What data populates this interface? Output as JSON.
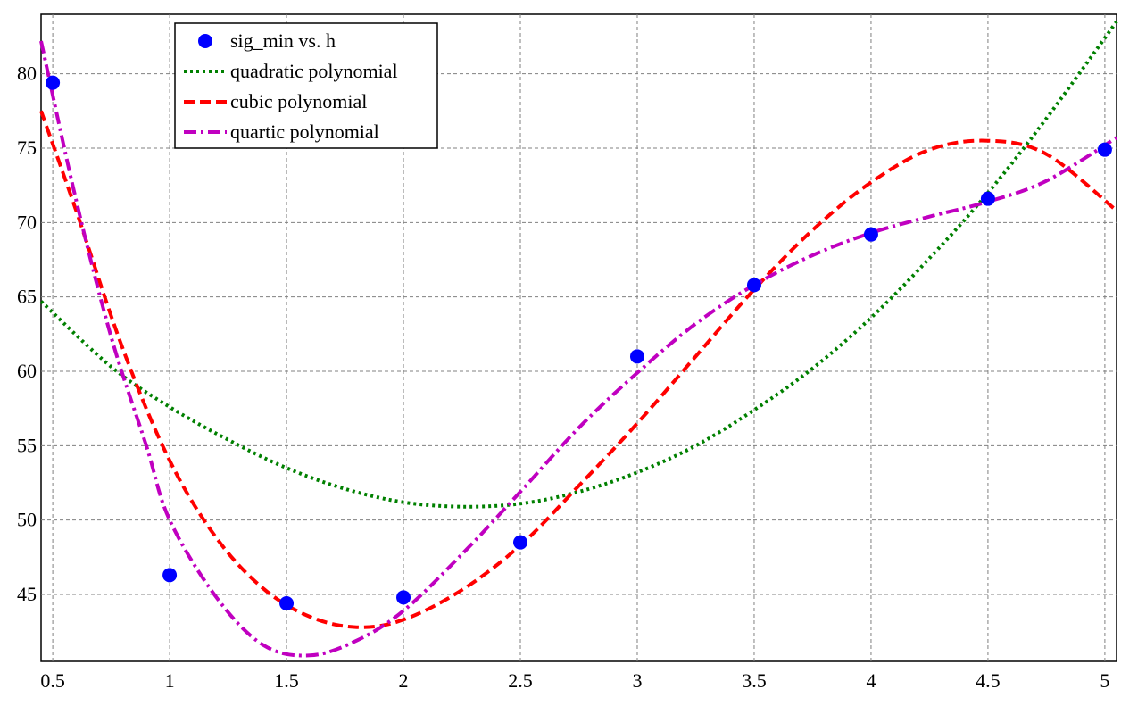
{
  "chart_data": {
    "type": "scatter",
    "title": "",
    "xlabel": "",
    "ylabel": "",
    "xlim": [
      0.45,
      5.05
    ],
    "ylim": [
      40.5,
      84
    ],
    "xticks": [
      0.5,
      1,
      1.5,
      2,
      2.5,
      3,
      3.5,
      4,
      4.5,
      5
    ],
    "xtick_labels": [
      "0.5",
      "1",
      "1.5",
      "2",
      "2.5",
      "3",
      "3.5",
      "4",
      "4.5",
      "5"
    ],
    "yticks": [
      45,
      50,
      55,
      60,
      65,
      70,
      75,
      80
    ],
    "ytick_labels": [
      "45",
      "50",
      "55",
      "60",
      "65",
      "70",
      "75",
      "80"
    ],
    "grid": true,
    "legend_position": "top-left",
    "series": [
      {
        "name": "sig_min vs. h",
        "style": "markers",
        "color": "#0000ff",
        "x": [
          0.5,
          1,
          1.5,
          2,
          2.5,
          3,
          3.5,
          4,
          4.5,
          5
        ],
        "y": [
          79.4,
          46.3,
          44.4,
          44.8,
          48.5,
          61.0,
          65.8,
          69.2,
          71.6,
          74.9
        ]
      },
      {
        "name": "quadratic polynomial",
        "style": "dotted",
        "color": "#008000",
        "x": [
          0.45,
          0.75,
          1.0,
          1.25,
          1.5,
          1.75,
          2.0,
          2.25,
          2.5,
          2.75,
          3.0,
          3.25,
          3.5,
          3.75,
          4.0,
          4.25,
          4.5,
          4.75,
          5.05
        ],
        "y": [
          64.7,
          60.3,
          57.6,
          55.4,
          53.5,
          52.1,
          51.2,
          50.9,
          51.1,
          51.9,
          53.2,
          55.0,
          57.4,
          60.2,
          63.6,
          67.6,
          72.0,
          77.0,
          83.5
        ]
      },
      {
        "name": "cubic polynomial",
        "style": "dashed",
        "color": "#ff0000",
        "x": [
          0.45,
          0.6,
          0.8,
          1.0,
          1.2,
          1.4,
          1.6,
          1.8,
          2.0,
          2.25,
          2.5,
          2.75,
          3.0,
          3.25,
          3.5,
          3.75,
          4.0,
          4.25,
          4.5,
          4.75,
          5.05
        ],
        "y": [
          77.5,
          70.8,
          61.5,
          54.0,
          48.8,
          45.4,
          43.5,
          42.8,
          43.3,
          45.3,
          48.3,
          52.3,
          56.5,
          61.0,
          65.5,
          69.5,
          72.7,
          74.9,
          75.5,
          74.6,
          70.8
        ]
      },
      {
        "name": "quartic polynomial",
        "style": "dashdot",
        "color": "#c000c0",
        "x": [
          0.45,
          0.6,
          0.75,
          0.9,
          1.0,
          1.2,
          1.4,
          1.6,
          1.8,
          2.0,
          2.25,
          2.5,
          2.75,
          3.0,
          3.25,
          3.5,
          3.75,
          4.0,
          4.25,
          4.5,
          4.75,
          5.05
        ],
        "y": [
          82.2,
          71.5,
          62.3,
          55.0,
          50.0,
          44.8,
          41.6,
          40.9,
          41.9,
          43.9,
          47.7,
          51.9,
          56.2,
          59.9,
          63.2,
          65.8,
          67.8,
          69.3,
          70.4,
          71.4,
          72.8,
          75.7
        ]
      }
    ]
  }
}
